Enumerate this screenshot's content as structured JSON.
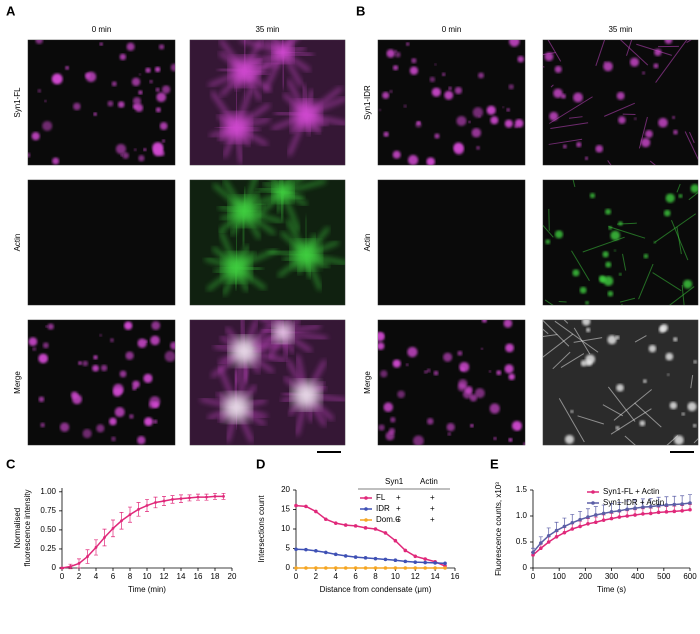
{
  "image_panels": [
    {
      "label": "A",
      "columns": [
        "0 min",
        "35 min"
      ],
      "rows": [
        "Syn1-FL",
        "Actin",
        "Merge"
      ]
    },
    {
      "label": "B",
      "columns": [
        "0 min",
        "35 min"
      ],
      "rows": [
        "Syn1-IDR",
        "Actin",
        "Merge"
      ]
    }
  ],
  "chart_data": [
    {
      "type": "line",
      "panel": "C",
      "xlabel": "Time (min)",
      "ylabel": [
        "Normalised",
        "fluorescence intensity"
      ],
      "xlim": [
        0,
        20
      ],
      "xticks": [
        0,
        2,
        4,
        6,
        8,
        10,
        12,
        14,
        16,
        18,
        20
      ],
      "ylim": [
        0,
        1.05
      ],
      "yticks": [
        0,
        0.25,
        {
          "value": 0.5,
          "label": "0.50"
        },
        0.75,
        {
          "value": 1,
          "label": "1.00"
        }
      ],
      "x": [
        0,
        1,
        2,
        3,
        4,
        5,
        6,
        7,
        8,
        9,
        10,
        11,
        12,
        13,
        14,
        15,
        16,
        17,
        18,
        19
      ],
      "series": [
        {
          "color": "#e0287a",
          "values": [
            0,
            0.02,
            0.06,
            0.15,
            0.27,
            0.4,
            0.52,
            0.62,
            0.7,
            0.77,
            0.82,
            0.86,
            0.88,
            0.9,
            0.91,
            0.92,
            0.93,
            0.93,
            0.94,
            0.94
          ],
          "errors": [
            0.01,
            0.03,
            0.06,
            0.09,
            0.1,
            0.11,
            0.11,
            0.11,
            0.1,
            0.09,
            0.08,
            0.07,
            0.06,
            0.05,
            0.05,
            0.04,
            0.04,
            0.04,
            0.04,
            0.04
          ]
        }
      ]
    },
    {
      "type": "line",
      "panel": "D",
      "xlabel": "Distance from condensate (μm)",
      "ylabel": [
        "Intersections count"
      ],
      "xlim": [
        0,
        16
      ],
      "xticks": [
        0,
        2,
        4,
        6,
        8,
        10,
        12,
        14,
        16
      ],
      "ylim": [
        0,
        20
      ],
      "yticks": [
        0,
        5,
        10,
        15,
        20
      ],
      "legend_headers": [
        "Syn1",
        "Actin"
      ],
      "x": [
        0,
        1,
        2,
        3,
        4,
        5,
        6,
        7,
        8,
        9,
        10,
        11,
        12,
        13,
        14,
        15
      ],
      "series": [
        {
          "name": "FL",
          "syn1": "+",
          "actin": "+",
          "color": "#e0287a",
          "values": [
            16,
            15.8,
            14.5,
            12.5,
            11.5,
            11,
            10.8,
            10.3,
            10,
            9,
            7,
            4.5,
            3,
            2.3,
            1.6,
            0.5
          ]
        },
        {
          "name": "IDR",
          "syn1": "+",
          "actin": "+",
          "color": "#3f51b5",
          "values": [
            4.8,
            4.7,
            4.4,
            4,
            3.5,
            3.1,
            2.8,
            2.6,
            2.4,
            2.2,
            2,
            1.7,
            1.5,
            1.4,
            1.3,
            1.2
          ]
        },
        {
          "name": "Dom.C",
          "syn1": "+",
          "actin": "+",
          "color": "#f5a623",
          "values": [
            0,
            0,
            0,
            0,
            0,
            0,
            0,
            0,
            0,
            0,
            0,
            0,
            0,
            0,
            0,
            0
          ]
        }
      ]
    },
    {
      "type": "line",
      "panel": "E",
      "xlabel": "Time (s)",
      "ylabel": [
        "Fluorescence counts, x10³"
      ],
      "xlim": [
        0,
        600
      ],
      "xticks": [
        0,
        100,
        200,
        300,
        400,
        500,
        600
      ],
      "ylim": [
        0,
        1.5
      ],
      "yticks": [
        0,
        0.5,
        {
          "value": 1,
          "label": "1.0"
        },
        1.5
      ],
      "x": [
        0,
        30,
        60,
        90,
        120,
        150,
        180,
        210,
        240,
        270,
        300,
        330,
        360,
        390,
        420,
        450,
        480,
        510,
        540,
        570,
        600
      ],
      "series": [
        {
          "name": "Syn1-FL + Actin",
          "color": "#e0287a",
          "values": [
            0.25,
            0.38,
            0.5,
            0.6,
            0.68,
            0.75,
            0.8,
            0.85,
            0.88,
            0.92,
            0.95,
            0.98,
            1.0,
            1.02,
            1.04,
            1.05,
            1.07,
            1.08,
            1.09,
            1.1,
            1.12
          ],
          "errors": [
            0.05,
            0.08,
            0.1,
            0.1,
            0.1,
            0.1,
            0.1,
            0.1,
            0.1,
            0.1,
            0.1,
            0.1,
            0.1,
            0.1,
            0.1,
            0.1,
            0.1,
            0.1,
            0.1,
            0.1,
            0.1
          ]
        },
        {
          "name": "Syn1-IDR + Actin",
          "color": "#5b5ea6",
          "values": [
            0.3,
            0.48,
            0.62,
            0.72,
            0.8,
            0.87,
            0.93,
            0.98,
            1.02,
            1.05,
            1.08,
            1.1,
            1.13,
            1.15,
            1.17,
            1.18,
            1.2,
            1.21,
            1.22,
            1.23,
            1.25
          ],
          "errors": [
            0.08,
            0.12,
            0.15,
            0.16,
            0.16,
            0.16,
            0.16,
            0.16,
            0.16,
            0.16,
            0.16,
            0.16,
            0.16,
            0.16,
            0.16,
            0.16,
            0.16,
            0.16,
            0.16,
            0.16,
            0.16
          ]
        }
      ]
    }
  ]
}
